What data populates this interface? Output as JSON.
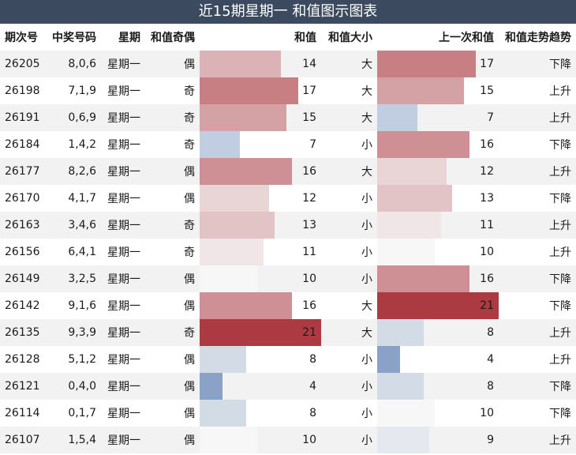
{
  "title": "近15期星期一 和值图示图表",
  "headers": {
    "issue": "期次号",
    "numbers": "中奖号码",
    "weekday": "星期",
    "parity": "和值奇偶",
    "sum": "和值",
    "size": "和值大小",
    "prev_sum": "上一次和值",
    "trend": "和值走势趋势"
  },
  "rows": [
    {
      "issue": "26205",
      "numbers": "8,0,6",
      "weekday": "星期一",
      "parity": "偶",
      "sum": 14,
      "size": "大",
      "prev_sum": 17,
      "trend": "下降"
    },
    {
      "issue": "26198",
      "numbers": "7,1,9",
      "weekday": "星期一",
      "parity": "奇",
      "sum": 17,
      "size": "大",
      "prev_sum": 15,
      "trend": "上升"
    },
    {
      "issue": "26191",
      "numbers": "0,6,9",
      "weekday": "星期一",
      "parity": "奇",
      "sum": 15,
      "size": "大",
      "prev_sum": 7,
      "trend": "上升"
    },
    {
      "issue": "26184",
      "numbers": "1,4,2",
      "weekday": "星期一",
      "parity": "奇",
      "sum": 7,
      "size": "小",
      "prev_sum": 16,
      "trend": "下降"
    },
    {
      "issue": "26177",
      "numbers": "8,2,6",
      "weekday": "星期一",
      "parity": "偶",
      "sum": 16,
      "size": "大",
      "prev_sum": 12,
      "trend": "上升"
    },
    {
      "issue": "26170",
      "numbers": "4,1,7",
      "weekday": "星期一",
      "parity": "偶",
      "sum": 12,
      "size": "小",
      "prev_sum": 13,
      "trend": "下降"
    },
    {
      "issue": "26163",
      "numbers": "3,4,6",
      "weekday": "星期一",
      "parity": "奇",
      "sum": 13,
      "size": "小",
      "prev_sum": 11,
      "trend": "上升"
    },
    {
      "issue": "26156",
      "numbers": "6,4,1",
      "weekday": "星期一",
      "parity": "奇",
      "sum": 11,
      "size": "小",
      "prev_sum": 10,
      "trend": "上升"
    },
    {
      "issue": "26149",
      "numbers": "3,2,5",
      "weekday": "星期一",
      "parity": "偶",
      "sum": 10,
      "size": "小",
      "prev_sum": 16,
      "trend": "下降"
    },
    {
      "issue": "26142",
      "numbers": "9,1,6",
      "weekday": "星期一",
      "parity": "偶",
      "sum": 16,
      "size": "大",
      "prev_sum": 21,
      "trend": "下降"
    },
    {
      "issue": "26135",
      "numbers": "9,3,9",
      "weekday": "星期一",
      "parity": "奇",
      "sum": 21,
      "size": "大",
      "prev_sum": 8,
      "trend": "上升"
    },
    {
      "issue": "26128",
      "numbers": "5,1,2",
      "weekday": "星期一",
      "parity": "偶",
      "sum": 8,
      "size": "小",
      "prev_sum": 4,
      "trend": "上升"
    },
    {
      "issue": "26121",
      "numbers": "0,4,0",
      "weekday": "星期一",
      "parity": "偶",
      "sum": 4,
      "size": "小",
      "prev_sum": 8,
      "trend": "下降"
    },
    {
      "issue": "26114",
      "numbers": "0,1,7",
      "weekday": "星期一",
      "parity": "偶",
      "sum": 8,
      "size": "小",
      "prev_sum": 10,
      "trend": "下降"
    },
    {
      "issue": "26107",
      "numbers": "1,5,4",
      "weekday": "星期一",
      "parity": "偶",
      "sum": 10,
      "size": "小",
      "prev_sum": 9,
      "trend": "上升"
    }
  ],
  "bar_scale": {
    "min": 4,
    "mid": 10,
    "max": 21
  },
  "colors": {
    "title_bg": "#3c4a5f",
    "high": "#ab3a42",
    "mid": "#f7f7f7",
    "low": "#8aa2c8"
  }
}
